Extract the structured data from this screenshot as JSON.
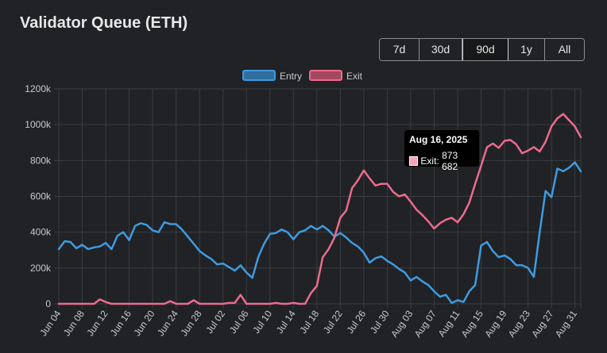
{
  "header": {
    "title": "Validator Queue (ETH)"
  },
  "range_buttons": [
    {
      "label": "7d",
      "active": false
    },
    {
      "label": "30d",
      "active": false
    },
    {
      "label": "90d",
      "active": true
    },
    {
      "label": "1y",
      "active": false
    },
    {
      "label": "All",
      "active": false
    }
  ],
  "tooltip": {
    "date": "Aug 16, 2025",
    "series_label": "Exit",
    "value_text": "873 682"
  },
  "colors": {
    "background": "#202225",
    "grid": "#3a3d41",
    "entry": "#3e9be0",
    "exit": "#ec6b8d"
  },
  "chart_data": {
    "type": "line",
    "title": "",
    "xlabel": "",
    "ylabel": "",
    "ylim": [
      0,
      1200000
    ],
    "y_ticks": [
      0,
      200000,
      400000,
      600000,
      800000,
      1000000,
      1200000
    ],
    "y_tick_labels": [
      "0",
      "200k",
      "400k",
      "600k",
      "800k",
      "1000k",
      "1200k"
    ],
    "x_tick_labels": [
      "Jun 04",
      "Jun 08",
      "Jun 12",
      "Jun 16",
      "Jun 20",
      "Jun 24",
      "Jun 28",
      "Jul 02",
      "Jul 06",
      "Jul 10",
      "Jul 14",
      "Jul 18",
      "Jul 22",
      "Jul 26",
      "Jul 30",
      "Aug 03",
      "Aug 07",
      "Aug 11",
      "Aug 15",
      "Aug 19",
      "Aug 23",
      "Aug 27",
      "Aug 31"
    ],
    "x_start": "Jun 04",
    "x_end": "Sep 01",
    "grid": true,
    "legend": "top-center",
    "series": [
      {
        "name": "Entry",
        "values": [
          305000,
          350000,
          345000,
          310000,
          330000,
          305000,
          315000,
          320000,
          340000,
          305000,
          380000,
          400000,
          355000,
          435000,
          450000,
          440000,
          410000,
          400000,
          455000,
          445000,
          445000,
          415000,
          375000,
          335000,
          295000,
          270000,
          250000,
          220000,
          225000,
          205000,
          185000,
          215000,
          175000,
          145000,
          260000,
          335000,
          390000,
          395000,
          415000,
          400000,
          360000,
          400000,
          410000,
          435000,
          415000,
          435000,
          410000,
          375000,
          395000,
          370000,
          340000,
          320000,
          285000,
          230000,
          255000,
          265000,
          240000,
          220000,
          195000,
          175000,
          130000,
          150000,
          125000,
          105000,
          70000,
          40000,
          50000,
          5000,
          20000,
          10000,
          70000,
          105000,
          325000,
          345000,
          295000,
          260000,
          270000,
          250000,
          215000,
          215000,
          200000,
          150000,
          400000,
          630000,
          595000,
          755000,
          740000,
          760000,
          790000,
          740000
        ]
      },
      {
        "name": "Exit",
        "values": [
          0,
          0,
          0,
          0,
          0,
          0,
          0,
          25000,
          10000,
          0,
          0,
          0,
          0,
          0,
          0,
          0,
          0,
          0,
          0,
          15000,
          0,
          0,
          0,
          20000,
          0,
          0,
          0,
          0,
          0,
          5000,
          5000,
          50000,
          0,
          0,
          0,
          0,
          0,
          5000,
          0,
          0,
          5000,
          0,
          0,
          60000,
          100000,
          260000,
          305000,
          370000,
          480000,
          520000,
          645000,
          690000,
          745000,
          700000,
          660000,
          670000,
          670000,
          625000,
          600000,
          610000,
          570000,
          525000,
          495000,
          460000,
          420000,
          450000,
          470000,
          480000,
          455000,
          500000,
          565000,
          670000,
          770000,
          873682,
          895000,
          870000,
          910000,
          915000,
          890000,
          840000,
          855000,
          875000,
          850000,
          905000,
          990000,
          1035000,
          1060000,
          1025000,
          990000,
          930000
        ]
      }
    ]
  }
}
